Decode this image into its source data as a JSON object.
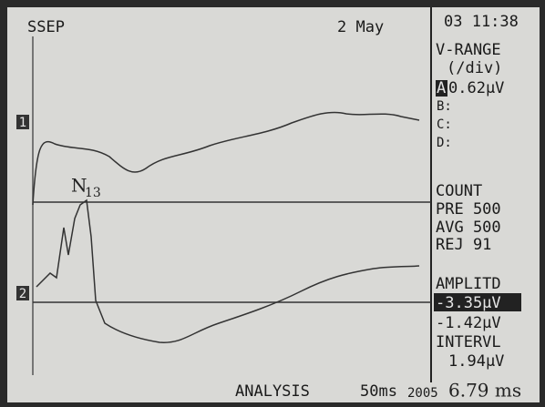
{
  "header": {
    "title": "SSEP",
    "date": "2 May",
    "time": "03 11:38"
  },
  "sidebar": {
    "range_title": "V-RANGE",
    "range_unit": "(/div)",
    "channels": [
      {
        "label": "A",
        "value": "0.62μV"
      },
      {
        "label": "B:",
        "value": ""
      },
      {
        "label": "C:",
        "value": ""
      },
      {
        "label": "D:",
        "value": ""
      }
    ],
    "count_title": "COUNT",
    "pre": "PRE 500",
    "avg": "AVG 500",
    "rej": "REJ  91",
    "amplitude_title": "AMPLITD",
    "amplitude_1": "-3.35μV",
    "amplitude_2": "-1.42μV",
    "interval_title": "INTERVL",
    "interval": "1.94μV"
  },
  "markers": [
    "1",
    "2"
  ],
  "annotation": {
    "peak": "N",
    "peak_sub": "13"
  },
  "footer": {
    "mode": "ANALYSIS",
    "timebase": "50ms",
    "year": "2005",
    "latency": "6.79 ms"
  }
}
